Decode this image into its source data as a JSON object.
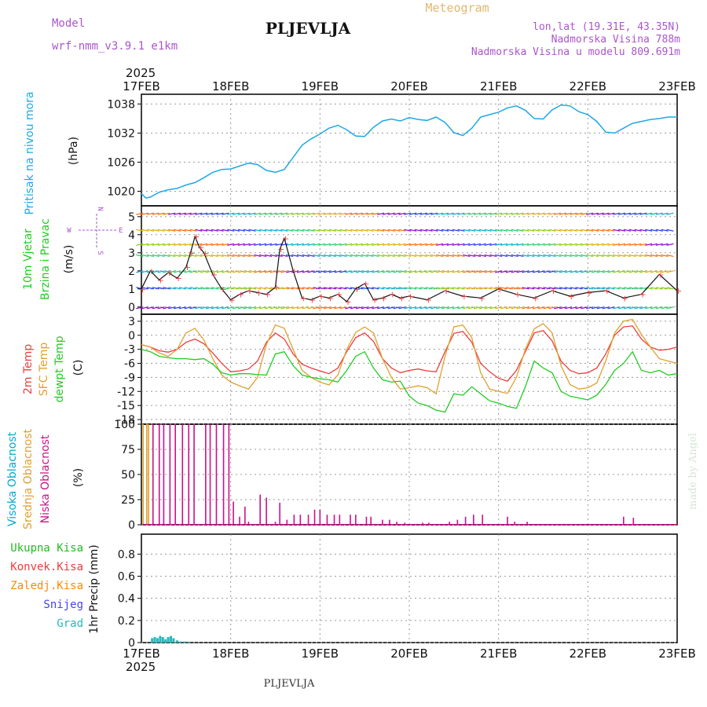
{
  "header": {
    "model_label": "Model",
    "model_name": "wrf-nmm_v3.9.1 e1km",
    "station": "PLJEVLJA",
    "meteogram_label": "Meteogram",
    "lonlat": "lon,lat (19.31E, 43.35N)",
    "altitude": "Nadmorska Visina 788m",
    "model_altitude": "Nadmorska Visina u modelu 809.691m"
  },
  "footer": {
    "station": "PLJEVLJA",
    "credit": "made by Angel"
  },
  "axis": {
    "year": "2025",
    "dates": [
      "17FEB",
      "18FEB",
      "19FEB",
      "20FEB",
      "21FEB",
      "22FEB",
      "23FEB"
    ]
  },
  "colors": {
    "pressure": "#1ea8e6",
    "t2m": "#ee3c3c",
    "tsfc": "#e0a030",
    "dewpt": "#22cc22",
    "high_cloud": "#00aacc",
    "mid_cloud": "#e0a030",
    "low_cloud": "#cc1188",
    "total_precip": "#22bb22",
    "conv_precip": "#ee3c3c",
    "frozen_precip": "#ff8800",
    "snow": "#4444ee",
    "graupel": "#22bbbb",
    "purple_text": "#aa55cc"
  },
  "chart_data": [
    {
      "type": "line",
      "name": "pressure",
      "ylabel_left": "Pritisak na nivou mora",
      "ylabel_unit": "(hPa)",
      "yticks": [
        1020,
        1026,
        1032,
        1038
      ],
      "ylim": [
        1017,
        1040
      ],
      "x_days": [
        0,
        0.05,
        0.1,
        0.2,
        0.3,
        0.4,
        0.5,
        0.6,
        0.7,
        0.8,
        0.9,
        1.0,
        1.1,
        1.2,
        1.3,
        1.4,
        1.5,
        1.6,
        1.7,
        1.8,
        1.9,
        2.0,
        2.1,
        2.2,
        2.3,
        2.4,
        2.5,
        2.6,
        2.7,
        2.8,
        2.9,
        3.0,
        3.1,
        3.2,
        3.3,
        3.4,
        3.5,
        3.6,
        3.7,
        3.8,
        3.9,
        4.0,
        4.1,
        4.2,
        4.3,
        4.4,
        4.5,
        4.6,
        4.7,
        4.8,
        4.9,
        5.0,
        5.1,
        5.2,
        5.3,
        5.4,
        5.5,
        5.6,
        5.7,
        5.8,
        5.9,
        6.0
      ],
      "values": [
        1019.5,
        1018.6,
        1018.8,
        1019.8,
        1020.3,
        1020.6,
        1021.3,
        1021.8,
        1022.8,
        1023.9,
        1024.5,
        1024.6,
        1025.2,
        1025.8,
        1025.5,
        1024.3,
        1023.9,
        1024.5,
        1027.0,
        1029.5,
        1030.8,
        1031.8,
        1033.0,
        1033.6,
        1032.7,
        1031.4,
        1031.3,
        1033.2,
        1034.5,
        1034.9,
        1034.5,
        1035.2,
        1034.8,
        1034.6,
        1035.3,
        1034.2,
        1032.1,
        1031.5,
        1033.0,
        1035.3,
        1035.8,
        1036.3,
        1037.2,
        1037.6,
        1036.7,
        1035.0,
        1034.9,
        1036.8,
        1037.8,
        1037.6,
        1036.4,
        1035.8,
        1034.4,
        1032.2,
        1032.0,
        1033.0,
        1034.0,
        1034.4,
        1034.8,
        1035.0,
        1035.3,
        1035.3
      ]
    },
    {
      "type": "line+barbs",
      "name": "wind",
      "ylabel_left": [
        "10m Vjetar",
        "Brzina i Pravac"
      ],
      "ylabel_unit": "(m/s)",
      "compass": {
        "n": "N",
        "w": "W",
        "e": "E",
        "s": "S"
      },
      "yticks": [
        0,
        1,
        2,
        3,
        4,
        5
      ],
      "ylim": [
        -0.4,
        5.6
      ],
      "x_days": [
        0,
        0.1,
        0.2,
        0.3,
        0.4,
        0.5,
        0.55,
        0.6,
        0.65,
        0.7,
        0.8,
        0.9,
        1.0,
        1.1,
        1.2,
        1.3,
        1.4,
        1.5,
        1.55,
        1.6,
        1.7,
        1.8,
        1.9,
        2.0,
        2.1,
        2.2,
        2.3,
        2.4,
        2.5,
        2.6,
        2.7,
        2.8,
        2.9,
        3.0,
        3.2,
        3.4,
        3.6,
        3.8,
        4.0,
        4.2,
        4.4,
        4.6,
        4.8,
        5.0,
        5.2,
        5.4,
        5.6,
        5.8,
        6.0
      ],
      "values": [
        1.0,
        2.0,
        1.5,
        1.9,
        1.6,
        2.2,
        3.0,
        3.9,
        3.3,
        3.0,
        1.8,
        1.0,
        0.4,
        0.7,
        0.9,
        0.8,
        0.7,
        1.1,
        3.2,
        3.8,
        2.0,
        0.5,
        0.4,
        0.6,
        0.5,
        0.7,
        0.3,
        1.0,
        1.3,
        0.4,
        0.5,
        0.7,
        0.5,
        0.6,
        0.4,
        0.9,
        0.6,
        0.5,
        1.0,
        0.7,
        0.5,
        0.9,
        0.6,
        0.8,
        0.9,
        0.5,
        0.7,
        1.8,
        0.9
      ]
    },
    {
      "type": "line",
      "name": "temperature",
      "ylabel_left": [
        "2m Temp",
        "SFC Temp",
        "dewpt Temp"
      ],
      "ylabel_unit": "(C)",
      "yticks": [
        3,
        0,
        -3,
        -6,
        -9,
        -12,
        -15,
        -18
      ],
      "ylim": [
        -19,
        4.5
      ],
      "x_days": [
        0,
        0.1,
        0.2,
        0.3,
        0.4,
        0.5,
        0.6,
        0.7,
        0.8,
        0.9,
        1.0,
        1.1,
        1.2,
        1.3,
        1.4,
        1.5,
        1.6,
        1.7,
        1.8,
        1.9,
        2.0,
        2.1,
        2.2,
        2.3,
        2.4,
        2.5,
        2.6,
        2.7,
        2.8,
        2.9,
        3.0,
        3.1,
        3.2,
        3.3,
        3.4,
        3.5,
        3.6,
        3.7,
        3.8,
        3.9,
        4.0,
        4.1,
        4.2,
        4.3,
        4.4,
        4.5,
        4.6,
        4.7,
        4.8,
        4.9,
        5.0,
        5.1,
        5.2,
        5.3,
        5.4,
        5.5,
        5.6,
        5.7,
        5.8,
        5.9,
        6.0
      ],
      "series": [
        {
          "name": "2m Temp",
          "values": [
            -2,
            -2.5,
            -3.3,
            -3.6,
            -3,
            -1.5,
            -0.8,
            -1.8,
            -3.8,
            -6,
            -7.8,
            -7.6,
            -7.2,
            -5.5,
            -1.5,
            0.5,
            -0.8,
            -4,
            -6.2,
            -7,
            -7.6,
            -8.2,
            -7,
            -3.5,
            -0.5,
            0.5,
            -1.3,
            -5,
            -7,
            -8,
            -7.5,
            -7.2,
            -7.6,
            -7.8,
            -3.5,
            0.4,
            0.8,
            -1.5,
            -6,
            -7.8,
            -9.2,
            -9.8,
            -7.5,
            -3.5,
            0.5,
            1,
            -1.2,
            -5.5,
            -7.5,
            -8.2,
            -8,
            -7,
            -4,
            0,
            1.8,
            2,
            -0.8,
            -2.5,
            -3.2,
            -3,
            -2.5
          ]
        },
        {
          "name": "SFC Temp",
          "values": [
            -2,
            -2.5,
            -3.8,
            -4.5,
            -3,
            0.5,
            1.5,
            -1,
            -5,
            -8.5,
            -10,
            -10.8,
            -11.5,
            -9,
            -2,
            2.2,
            1.5,
            -3,
            -7.5,
            -9,
            -10,
            -10.6,
            -8.5,
            -3,
            0.6,
            1.8,
            0.5,
            -5,
            -9,
            -11.5,
            -11.2,
            -10.8,
            -11.2,
            -12.5,
            -4.5,
            1.8,
            2.2,
            -0.5,
            -8,
            -11.5,
            -12,
            -12.4,
            -9,
            -3,
            1.4,
            2.5,
            0.5,
            -6.5,
            -10.5,
            -11.5,
            -11.2,
            -10.2,
            -5.5,
            0.5,
            3,
            3.4,
            0.2,
            -2.5,
            -5,
            -5.5,
            -6
          ]
        },
        {
          "name": "dewpt Temp",
          "values": [
            -3,
            -3.5,
            -4.5,
            -4.8,
            -5,
            -5,
            -5.2,
            -5,
            -6.2,
            -8,
            -8.5,
            -8.2,
            -8.2,
            -8.4,
            -8.5,
            -4,
            -3.5,
            -6.5,
            -8.5,
            -9,
            -9.3,
            -9.5,
            -10,
            -7.5,
            -4.5,
            -3.5,
            -7,
            -9.5,
            -10,
            -9.8,
            -13,
            -14.5,
            -15,
            -16,
            -16.4,
            -12.5,
            -12.8,
            -11,
            -12.5,
            -14,
            -14.5,
            -15.2,
            -15.6,
            -11,
            -5.5,
            -7,
            -8,
            -12,
            -13,
            -13.4,
            -13.8,
            -12.8,
            -10.5,
            -7.5,
            -6,
            -3.5,
            -7.5,
            -8,
            -7.5,
            -8.5,
            -8.2
          ]
        }
      ]
    },
    {
      "type": "bar",
      "name": "clouds",
      "ylabel_left": [
        "Visoka Oblacnost",
        "Srednja Oblacnost",
        "Niska Oblacnost"
      ],
      "ylabel_unit": "(%)",
      "yticks": [
        0,
        25,
        50,
        75,
        100
      ],
      "ylim": [
        0,
        100
      ],
      "series": [
        {
          "name": "Srednja Oblacnost",
          "x_days": [
            0.02,
            0.06,
            0.08
          ],
          "values": [
            100,
            100,
            100
          ]
        },
        {
          "name": "Niska Oblacnost",
          "x_days": [
            0.13,
            0.2,
            0.25,
            0.32,
            0.38,
            0.46,
            0.53,
            0.59,
            0.72,
            0.77,
            0.84,
            0.92,
            0.98,
            1.03,
            1.1,
            1.16,
            1.2,
            1.33,
            1.4,
            1.5,
            1.55,
            1.63,
            1.71,
            1.78,
            1.87,
            1.94,
            2.0,
            2.08,
            2.16,
            2.22,
            2.34,
            2.4,
            2.52,
            2.57,
            2.7,
            2.78,
            2.86,
            2.95,
            3.15,
            3.22,
            3.45,
            3.54,
            3.63,
            3.72,
            3.82,
            4.1,
            4.18,
            4.32,
            5.4,
            5.51
          ],
          "values": [
            100,
            100,
            100,
            100,
            100,
            100,
            100,
            100,
            100,
            100,
            100,
            100,
            100,
            23,
            8,
            18,
            3,
            30,
            27,
            3,
            22,
            5,
            10,
            10,
            10,
            15,
            15,
            10,
            10,
            10,
            10,
            10,
            8,
            8,
            5,
            5,
            3,
            2,
            2,
            2,
            3,
            5,
            8,
            10,
            10,
            8,
            3,
            3,
            8,
            7
          ]
        }
      ]
    },
    {
      "type": "bar",
      "name": "precipitation",
      "ylabel_unit": "1hr Precip (mm)",
      "legend": [
        "Ukupna Kisa",
        "Konvek.Kisa",
        "Zaledj.Kisa",
        "Snijeg",
        "Grad"
      ],
      "yticks": [
        0,
        0.2,
        0.4,
        0.6,
        0.8
      ],
      "ylim": [
        0,
        0.98
      ],
      "x_days": [
        0.12,
        0.15,
        0.18,
        0.21,
        0.24,
        0.27,
        0.3,
        0.33,
        0.36,
        0.4,
        0.44,
        0.48,
        0.52
      ],
      "values": [
        0.04,
        0.05,
        0.04,
        0.06,
        0.05,
        0.03,
        0.05,
        0.06,
        0.04,
        0.02,
        0.01,
        0.01,
        0.01
      ]
    }
  ]
}
